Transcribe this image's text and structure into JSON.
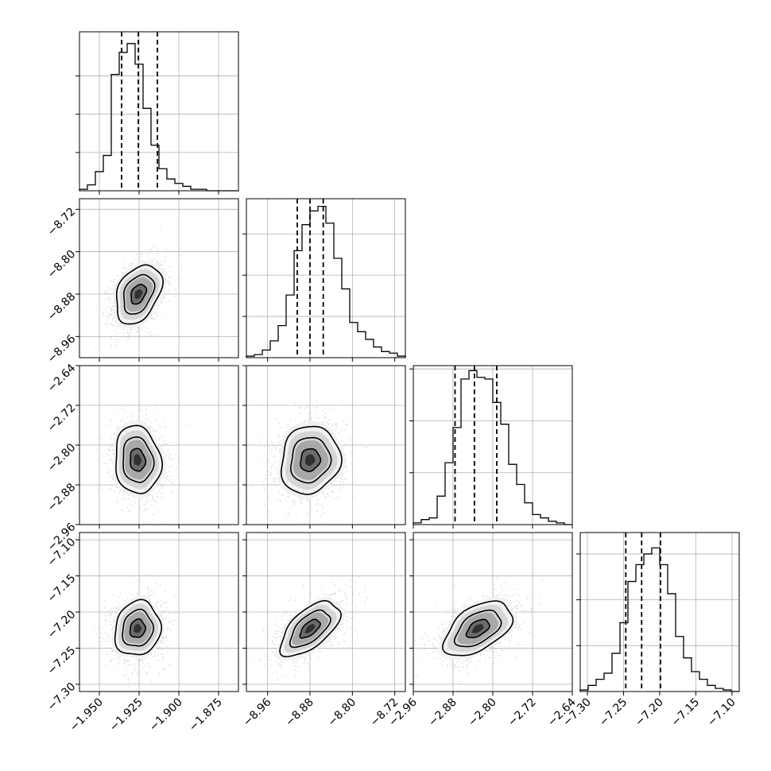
{
  "chart_data": {
    "type": "corner",
    "title": "",
    "grid": true,
    "parameters": [
      {
        "range": [
          -1.9625,
          -1.8625
        ],
        "ticks": [
          -1.95,
          -1.925,
          -1.9,
          -1.875
        ],
        "tick_labels": [
          "−1.950",
          "−1.925",
          "−1.900",
          "−1.875"
        ],
        "quantiles": [
          -1.936,
          -1.9255,
          -1.9135
        ],
        "histogram": {
          "bin_start": -1.9625,
          "bin_width": 0.005,
          "counts": [
            0.01,
            0.04,
            0.13,
            0.24,
            0.79,
            0.94,
            1.0,
            0.86,
            0.56,
            0.31,
            0.15,
            0.08,
            0.05,
            0.03,
            0.01,
            0.01,
            0,
            0,
            0,
            0
          ],
          "ylim": [
            0,
            1.08
          ],
          "yticks": [
            0.26,
            0.52,
            0.78
          ]
        }
      },
      {
        "range": [
          -9.0,
          -8.7
        ],
        "ticks": [
          -8.96,
          -8.88,
          -8.8,
          -8.72
        ],
        "tick_labels": [
          "−8.96",
          "−8.88",
          "−8.80",
          "−8.72"
        ],
        "quantiles": [
          -8.904,
          -8.88,
          -8.855
        ],
        "histogram": {
          "bin_start": -9.0,
          "bin_width": 0.015,
          "counts": [
            0.01,
            0.02,
            0.05,
            0.11,
            0.21,
            0.41,
            0.7,
            0.87,
            0.96,
            0.99,
            0.88,
            0.65,
            0.45,
            0.23,
            0.17,
            0.12,
            0.07,
            0.04,
            0.03,
            0.01
          ],
          "ylim": [
            0,
            1.04
          ],
          "yticks": [
            0.27,
            0.54,
            0.81
          ]
        }
      },
      {
        "range": [
          -2.96,
          -2.64
        ],
        "ticks": [
          -2.96,
          -2.88,
          -2.8,
          -2.72,
          -2.64
        ],
        "tick_labels": [
          "−2.96",
          "−2.88",
          "−2.80",
          "−2.72",
          "−2.64"
        ],
        "quantiles": [
          -2.876,
          -2.837,
          -2.792
        ],
        "histogram": {
          "bin_start": -2.96,
          "bin_width": 0.016,
          "counts": [
            0.01,
            0.03,
            0.04,
            0.17,
            0.37,
            0.58,
            0.87,
            0.92,
            0.88,
            0.87,
            0.73,
            0.6,
            0.36,
            0.24,
            0.13,
            0.06,
            0.04,
            0.02,
            0.01,
            0.0
          ],
          "ylim": [
            0,
            0.95
          ],
          "yticks": [
            0.31,
            0.62,
            0.93
          ]
        }
      },
      {
        "range": [
          -7.31,
          -7.09
        ],
        "ticks": [
          -7.3,
          -7.25,
          -7.2,
          -7.15,
          -7.1
        ],
        "tick_labels": [
          "−7.30",
          "−7.25",
          "−7.20",
          "−7.15",
          "−7.10"
        ],
        "quantiles": [
          -7.247,
          -7.225,
          -7.199
        ],
        "histogram": {
          "bin_start": -7.31,
          "bin_width": 0.011,
          "counts": [
            0.01,
            0.04,
            0.08,
            0.12,
            0.25,
            0.45,
            0.72,
            0.83,
            0.9,
            0.94,
            0.83,
            0.64,
            0.36,
            0.22,
            0.13,
            0.08,
            0.04,
            0.02,
            0.01,
            0.0
          ],
          "ylim": [
            0,
            1.04
          ],
          "yticks": [
            0.3,
            0.6,
            0.9
          ]
        }
      }
    ],
    "pairs": [
      {
        "row": 1,
        "col": 0,
        "center": [
          -1.9255,
          -8.88
        ],
        "sd": [
          0.008,
          0.031
        ],
        "corr": 0.35
      },
      {
        "row": 2,
        "col": 0,
        "center": [
          -1.926,
          -2.83
        ],
        "sd": [
          0.008,
          0.038
        ],
        "corr": -0.1
      },
      {
        "row": 2,
        "col": 1,
        "center": [
          -8.88,
          -2.83
        ],
        "sd": [
          0.031,
          0.038
        ],
        "corr": 0.1
      },
      {
        "row": 3,
        "col": 0,
        "center": [
          -1.926,
          -7.223
        ],
        "sd": [
          0.008,
          0.021
        ],
        "corr": 0.1
      },
      {
        "row": 3,
        "col": 1,
        "center": [
          -8.88,
          -7.223
        ],
        "sd": [
          0.031,
          0.021
        ],
        "corr": 0.6
      },
      {
        "row": 3,
        "col": 2,
        "center": [
          -2.83,
          -7.223
        ],
        "sd": [
          0.038,
          0.021
        ],
        "corr": 0.5
      }
    ]
  }
}
